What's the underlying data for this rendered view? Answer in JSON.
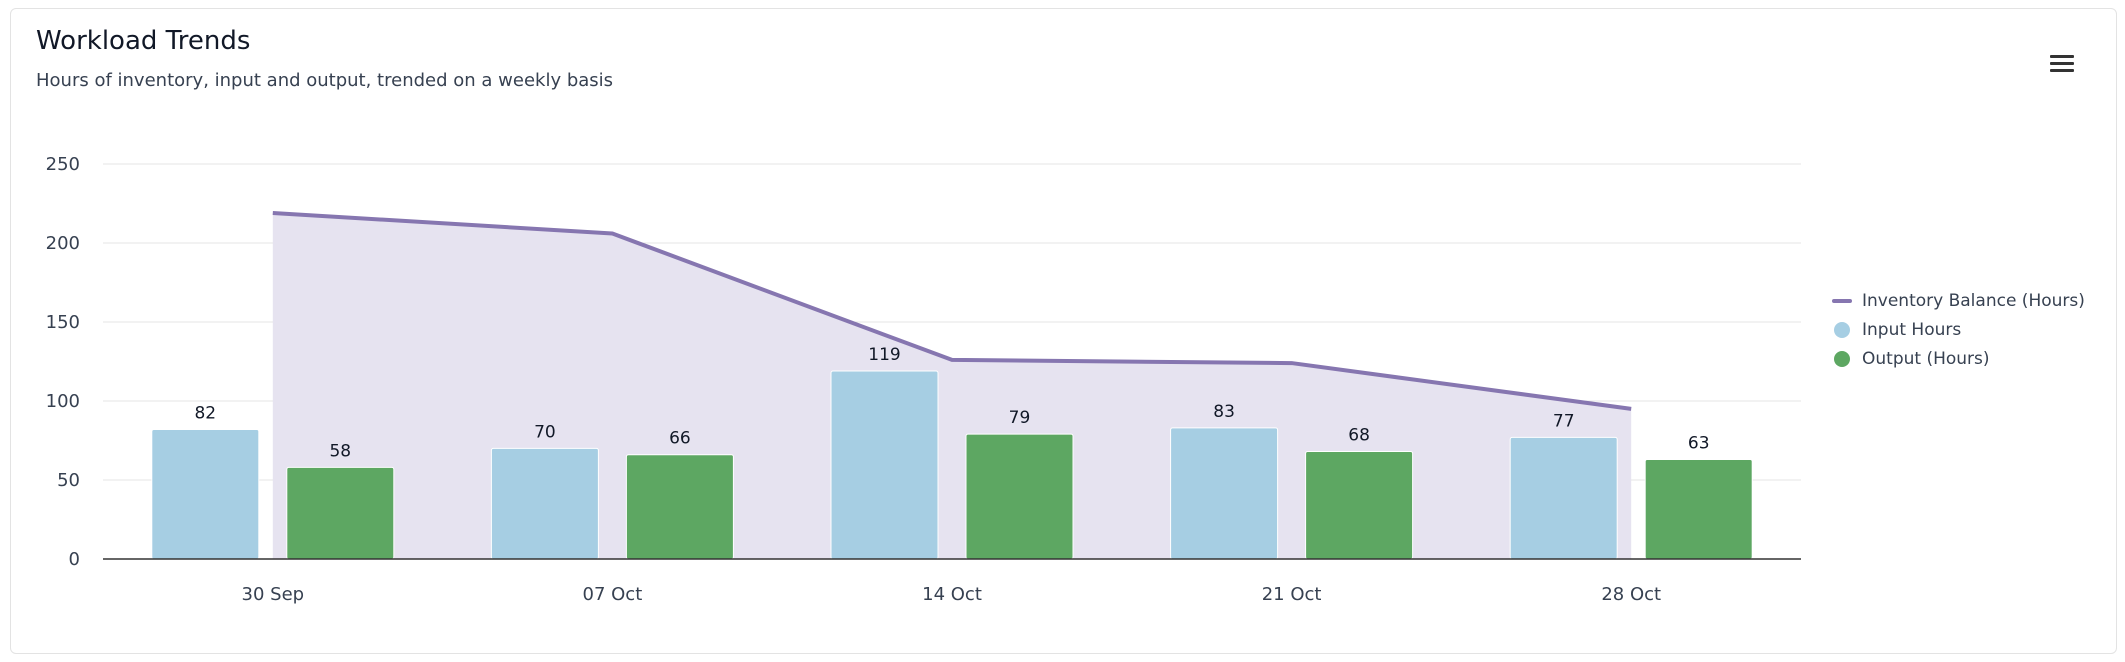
{
  "header": {
    "title": "Workload Trends",
    "subtitle": "Hours of inventory, input and output, trended on a weekly basis",
    "menu_icon": "hamburger-menu-icon"
  },
  "chart_data": {
    "type": "bar",
    "categories": [
      "30 Sep",
      "07 Oct",
      "14 Oct",
      "21 Oct",
      "28 Oct"
    ],
    "ylim": [
      0,
      250
    ],
    "yticks": [
      0,
      50,
      100,
      150,
      200,
      250
    ],
    "grid": true,
    "legend_position": "right",
    "series": [
      {
        "name": "Inventory Balance (Hours)",
        "type": "area-line",
        "color": "#8676b0",
        "fill": "#e6e3f0",
        "values": [
          219,
          206,
          126,
          124,
          95
        ]
      },
      {
        "name": "Input Hours",
        "type": "bar",
        "color": "#a6cee3",
        "values": [
          82,
          70,
          119,
          83,
          77
        ]
      },
      {
        "name": "Output (Hours)",
        "type": "bar",
        "color": "#5da762",
        "values": [
          58,
          66,
          79,
          68,
          63
        ]
      }
    ]
  }
}
